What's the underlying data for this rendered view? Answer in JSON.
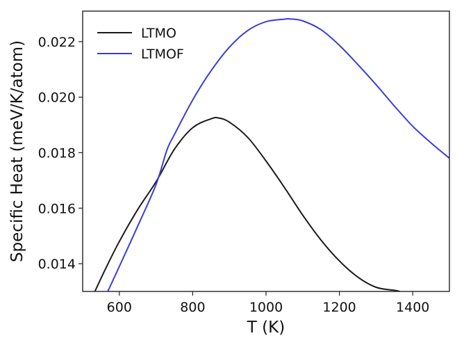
{
  "chart_data": {
    "type": "line",
    "title": "",
    "xlabel": "T (K)",
    "ylabel": "Specific Heat (meV/K/atom)",
    "xlim": [
      500,
      1500
    ],
    "ylim": [
      0.013,
      0.0231
    ],
    "xticks": [
      600,
      800,
      1000,
      1200,
      1400
    ],
    "xtick_labels": [
      "600",
      "800",
      "1000",
      "1200",
      "1400"
    ],
    "yticks": [
      0.014,
      0.016,
      0.018,
      0.02,
      0.022
    ],
    "ytick_labels": [
      "0.014",
      "0.016",
      "0.018",
      "0.020",
      "0.022"
    ],
    "legend_position": "top-left",
    "grid": false,
    "series": [
      {
        "name": "LTMO",
        "color": "#1a1a1a",
        "x": [
          530,
          560,
          600,
          650,
          700,
          750,
          800,
          850,
          870,
          900,
          950,
          1000,
          1050,
          1100,
          1150,
          1200,
          1250,
          1300,
          1350,
          1365
        ],
        "y": [
          0.0129,
          0.01375,
          0.0148,
          0.01595,
          0.01695,
          0.01812,
          0.0189,
          0.01922,
          0.01925,
          0.0191,
          0.01855,
          0.0177,
          0.01675,
          0.01575,
          0.01485,
          0.0141,
          0.01352,
          0.01315,
          0.01304,
          0.013
        ]
      },
      {
        "name": "LTMOF",
        "color": "#3b3bd9",
        "x": [
          565,
          600,
          650,
          700,
          730,
          750,
          800,
          850,
          900,
          950,
          1000,
          1050,
          1065,
          1100,
          1150,
          1200,
          1250,
          1300,
          1350,
          1400,
          1450,
          1500
        ],
        "y": [
          0.0129,
          0.0139,
          0.01535,
          0.01685,
          0.0181,
          0.01865,
          0.0199,
          0.02095,
          0.0218,
          0.0224,
          0.02272,
          0.02281,
          0.02282,
          0.02275,
          0.02243,
          0.02187,
          0.02118,
          0.02045,
          0.01968,
          0.01895,
          0.01835,
          0.0178
        ]
      }
    ]
  }
}
